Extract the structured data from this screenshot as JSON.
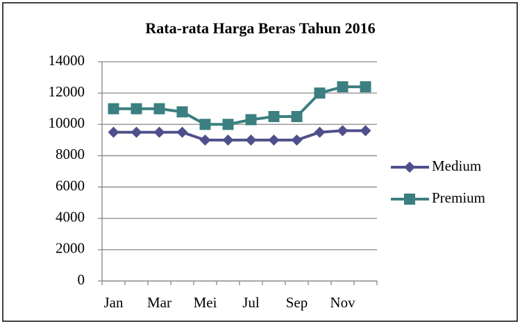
{
  "chart_data": {
    "type": "line",
    "title": "Rata-rata Harga Beras Tahun 2016",
    "categories": [
      "Jan",
      null,
      "Mar",
      null,
      "Mei",
      null,
      "Jul",
      null,
      "Sep",
      null,
      "Nov",
      null
    ],
    "series": [
      {
        "name": "Medium",
        "color": "#4f4f8c",
        "marker": "diamond",
        "values": [
          9500,
          9500,
          9500,
          9500,
          9000,
          9000,
          9000,
          9000,
          9000,
          9500,
          9600,
          9600
        ]
      },
      {
        "name": "Premium",
        "color": "#3b7f80",
        "marker": "square",
        "values": [
          11000,
          11000,
          11000,
          10800,
          10000,
          10000,
          10300,
          10500,
          10500,
          12000,
          12400,
          12400
        ]
      }
    ],
    "ylim": [
      0,
      14000
    ],
    "yticks": [
      0,
      2000,
      4000,
      6000,
      8000,
      10000,
      12000,
      14000
    ],
    "grid": true,
    "legend": "right"
  }
}
